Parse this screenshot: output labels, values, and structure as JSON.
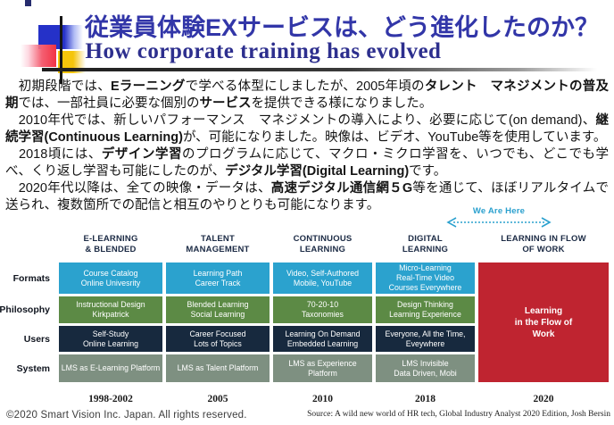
{
  "header": {
    "title_jp": "従業員体験EXサービスは、どう進化したのか？",
    "title_en": "How corporate training has evolved"
  },
  "body": {
    "paragraphs": [
      {
        "runs": [
          {
            "t": "　初期段階では、",
            "b": false
          },
          {
            "t": "Eラーニング",
            "b": true
          },
          {
            "t": "で学べる体型にしましたが、2005年頃の",
            "b": false
          },
          {
            "t": "タレント　マネジメントの普及期",
            "b": true
          },
          {
            "t": "では、一部社員に必要な個別の",
            "b": false
          },
          {
            "t": "サービス",
            "b": true
          },
          {
            "t": "を提供できる様になりました。",
            "b": false
          }
        ]
      },
      {
        "runs": [
          {
            "t": "　2010年代では、新しいパフォーマンス　マネジメントの導入により、必要に応じて(on demand)、",
            "b": false
          },
          {
            "t": "継続学習(Continuous Learning)",
            "b": true
          },
          {
            "t": "が、可能になりました。映像は、ビデオ、YouTube等を使用しています。",
            "b": false
          }
        ]
      },
      {
        "runs": [
          {
            "t": "　2018頃には、",
            "b": false
          },
          {
            "t": "デザイン学習",
            "b": true
          },
          {
            "t": "のプログラムに応じて、マクロ・ミクロ学習を、いつでも、どこでも学べ、くり返し学習も可能にしたのが、",
            "b": false
          },
          {
            "t": "デジタル学習(Digital Learning)",
            "b": true
          },
          {
            "t": "です。",
            "b": false
          }
        ]
      },
      {
        "runs": [
          {
            "t": "　2020年代以降は、全ての映像・データは、",
            "b": false
          },
          {
            "t": "高速デジタル通信網５G",
            "b": true
          },
          {
            "t": "等を通じて、ほぼリアルタイムで送られ、複数箇所での配信と相互のやりとりも可能になります。",
            "b": false
          }
        ]
      }
    ]
  },
  "annotation": {
    "we_are_here": "We Are Here",
    "arrow_color": "#2AA0CE"
  },
  "evolution_table": {
    "row_labels": [
      "Formats",
      "Philosophy",
      "Users",
      "System"
    ],
    "row_colors": [
      "#2BA2CE",
      "#5C8A45",
      "#17293E",
      "#7E9081"
    ],
    "columns": [
      {
        "header": "E-LEARNING\n& BLENDED",
        "year": "1998-2002",
        "cells": [
          "Course Catalog\nOnline Univesrity",
          "Instructional Design\nKirkpatrick",
          "Self-Study\nOnline Learning",
          "LMS as E-Learning Platform"
        ]
      },
      {
        "header": "TALENT\nMANAGEMENT",
        "year": "2005",
        "cells": [
          "Learning Path\nCareer Track",
          "Blended Learning\nSocial Learning",
          "Career Focused\nLots of Topics",
          "LMS as Talent Platform"
        ]
      },
      {
        "header": "CONTINUOUS\nLEARNING",
        "year": "2010",
        "cells": [
          "Video, Self-Authored\nMobile, YouTube",
          "70-20-10\nTaxonomies",
          "Learning On Demand\nEmbedded Learning",
          "LMS as Experience\nPlatform"
        ]
      },
      {
        "header": "DIGITAL\nLEARNING",
        "year": "2018",
        "cells": [
          "Micro-Learning\nReal-Time Video\nCourses Everywhere",
          "Design Thinking\nLearning Experience",
          "Everyone, All the Time,\nEveywhere",
          "LMS Invisible\nData Driven, Mobi"
        ]
      }
    ],
    "flow_column": {
      "header": "LEARNING IN FLOW\nOF WORK",
      "year": "2020",
      "cell": "Learning\nin the Flow of\nWork",
      "color": "#BF2430"
    }
  },
  "footer": {
    "copyright": "©2020 Smart Vision Inc. Japan. All rights reserved.",
    "source": "Source: A wild new world of HR tech, Global Industry Analyst 2020 Edition, Josh Bersin"
  }
}
